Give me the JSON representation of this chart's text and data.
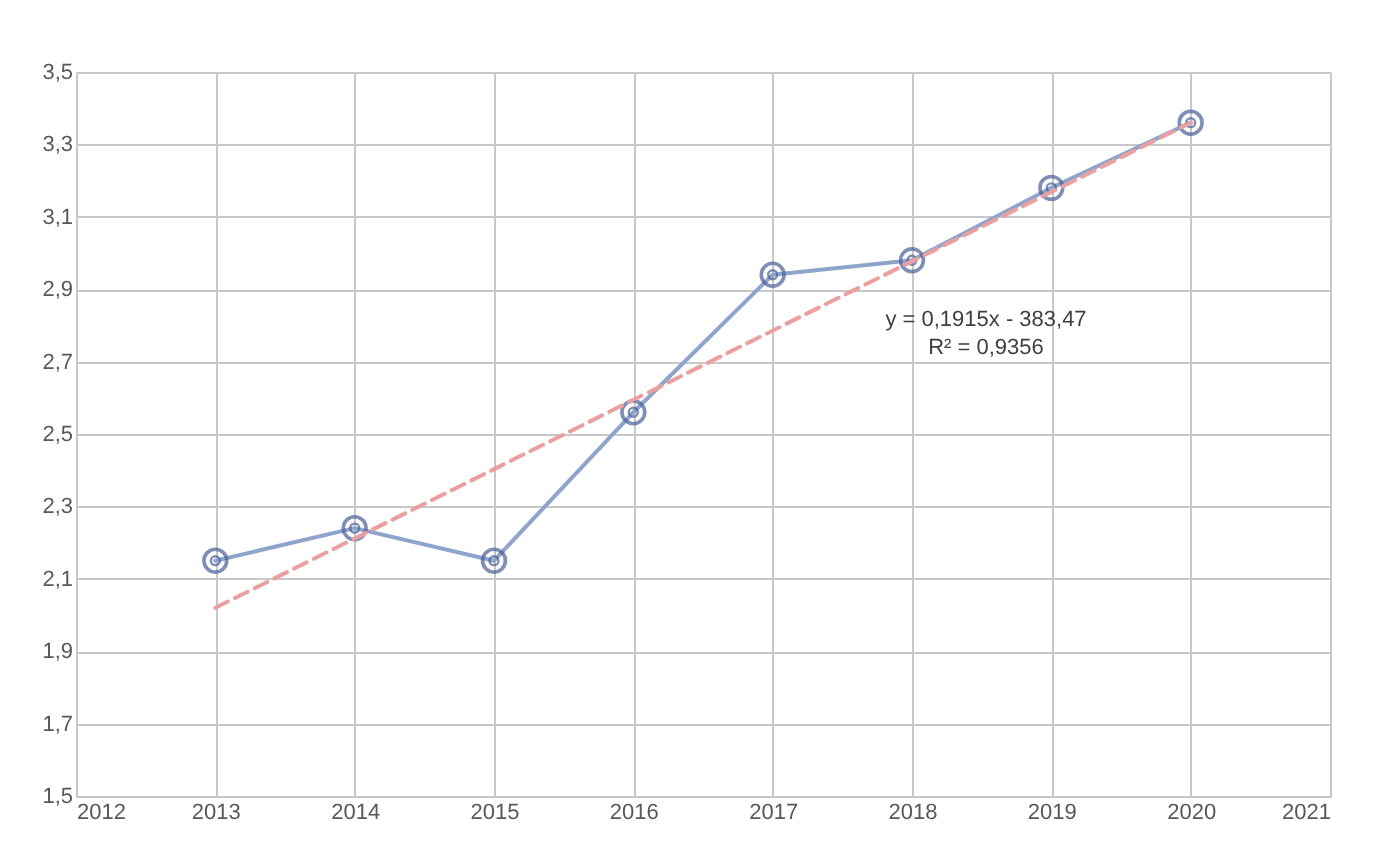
{
  "chart_data": {
    "type": "line",
    "x": [
      2013,
      2014,
      2015,
      2016,
      2017,
      2018,
      2019,
      2020
    ],
    "series": [
      {
        "color": "#8fa4cc",
        "marker": "circle",
        "line_style": "solid",
        "values": [
          2.15,
          2.24,
          2.15,
          2.56,
          2.94,
          2.98,
          3.18,
          3.36
        ]
      },
      {
        "type": "line",
        "color": "#e8a0a0",
        "line_style": "dashed",
        "x": [
          2013,
          2020
        ],
        "values": [
          2.02,
          3.36
        ]
      }
    ],
    "xlim": [
      2012,
      2021
    ],
    "xticks": [
      2012,
      2013,
      2014,
      2015,
      2016,
      2017,
      2018,
      2019,
      2020,
      2021
    ],
    "ylim": [
      1.5,
      3.5
    ],
    "yticks": [
      {
        "value": 1.5,
        "label": "1,5"
      },
      {
        "value": 1.7,
        "label": "1,7"
      },
      {
        "value": 1.9,
        "label": "1,9"
      },
      {
        "value": 2.1,
        "label": "2,1"
      },
      {
        "value": 2.3,
        "label": "2,3"
      },
      {
        "value": 2.5,
        "label": "2,5"
      },
      {
        "value": 2.7,
        "label": "2,7"
      },
      {
        "value": 2.9,
        "label": "2,9"
      },
      {
        "value": 3.1,
        "label": "3,1"
      },
      {
        "value": 3.3,
        "label": "3,3"
      },
      {
        "value": 3.5,
        "label": "3,5"
      }
    ],
    "grid": true,
    "annotations": [
      "y = 0,1915x - 383,47",
      "R² = 0,9356"
    ]
  }
}
